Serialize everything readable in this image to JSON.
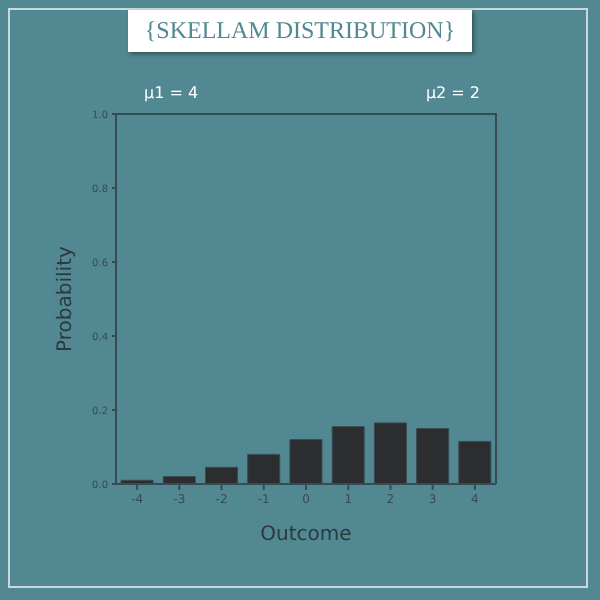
{
  "chart_data": {
    "type": "bar",
    "title": "{SKELLAM DISTRIBUTION}",
    "xlabel": "Outcome",
    "ylabel": "Probability",
    "annotations": [
      "μ1 = 4",
      "μ2 = 2"
    ],
    "categories": [
      "-4",
      "-3",
      "-2",
      "-1",
      "0",
      "1",
      "2",
      "3",
      "4"
    ],
    "values": [
      0.01,
      0.02,
      0.045,
      0.08,
      0.12,
      0.155,
      0.165,
      0.15,
      0.115
    ],
    "color": "#2b2d2f",
    "ylim": [
      0,
      1
    ],
    "yticks": [
      {
        "value": 0,
        "label": "0.0"
      },
      0.2,
      0.4,
      0.6,
      0.8,
      {
        "value": 1,
        "label": "1.0"
      }
    ],
    "grid": false
  }
}
